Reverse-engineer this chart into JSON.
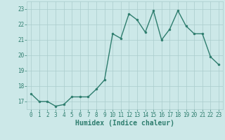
{
  "x": [
    0,
    1,
    2,
    3,
    4,
    5,
    6,
    7,
    8,
    9,
    10,
    11,
    12,
    13,
    14,
    15,
    16,
    17,
    18,
    19,
    20,
    21,
    22,
    23
  ],
  "y": [
    17.5,
    17.0,
    17.0,
    16.7,
    16.8,
    17.3,
    17.3,
    17.3,
    17.8,
    18.4,
    21.4,
    21.1,
    22.7,
    22.3,
    21.5,
    22.9,
    21.0,
    21.7,
    22.9,
    21.9,
    21.4,
    21.4,
    19.9,
    19.4
  ],
  "line_color": "#2e7d6e",
  "marker": "o",
  "marker_size": 2.0,
  "bg_color": "#cce8e8",
  "grid_color": "#aacccc",
  "xlabel": "Humidex (Indice chaleur)",
  "ylim": [
    16.5,
    23.5
  ],
  "xlim": [
    -0.5,
    23.5
  ],
  "yticks": [
    17,
    18,
    19,
    20,
    21,
    22,
    23
  ],
  "xticks": [
    0,
    1,
    2,
    3,
    4,
    5,
    6,
    7,
    8,
    9,
    10,
    11,
    12,
    13,
    14,
    15,
    16,
    17,
    18,
    19,
    20,
    21,
    22,
    23
  ],
  "tick_color": "#2e7d6e",
  "tick_fontsize": 5.5,
  "xlabel_fontsize": 7.0,
  "line_width": 1.0
}
